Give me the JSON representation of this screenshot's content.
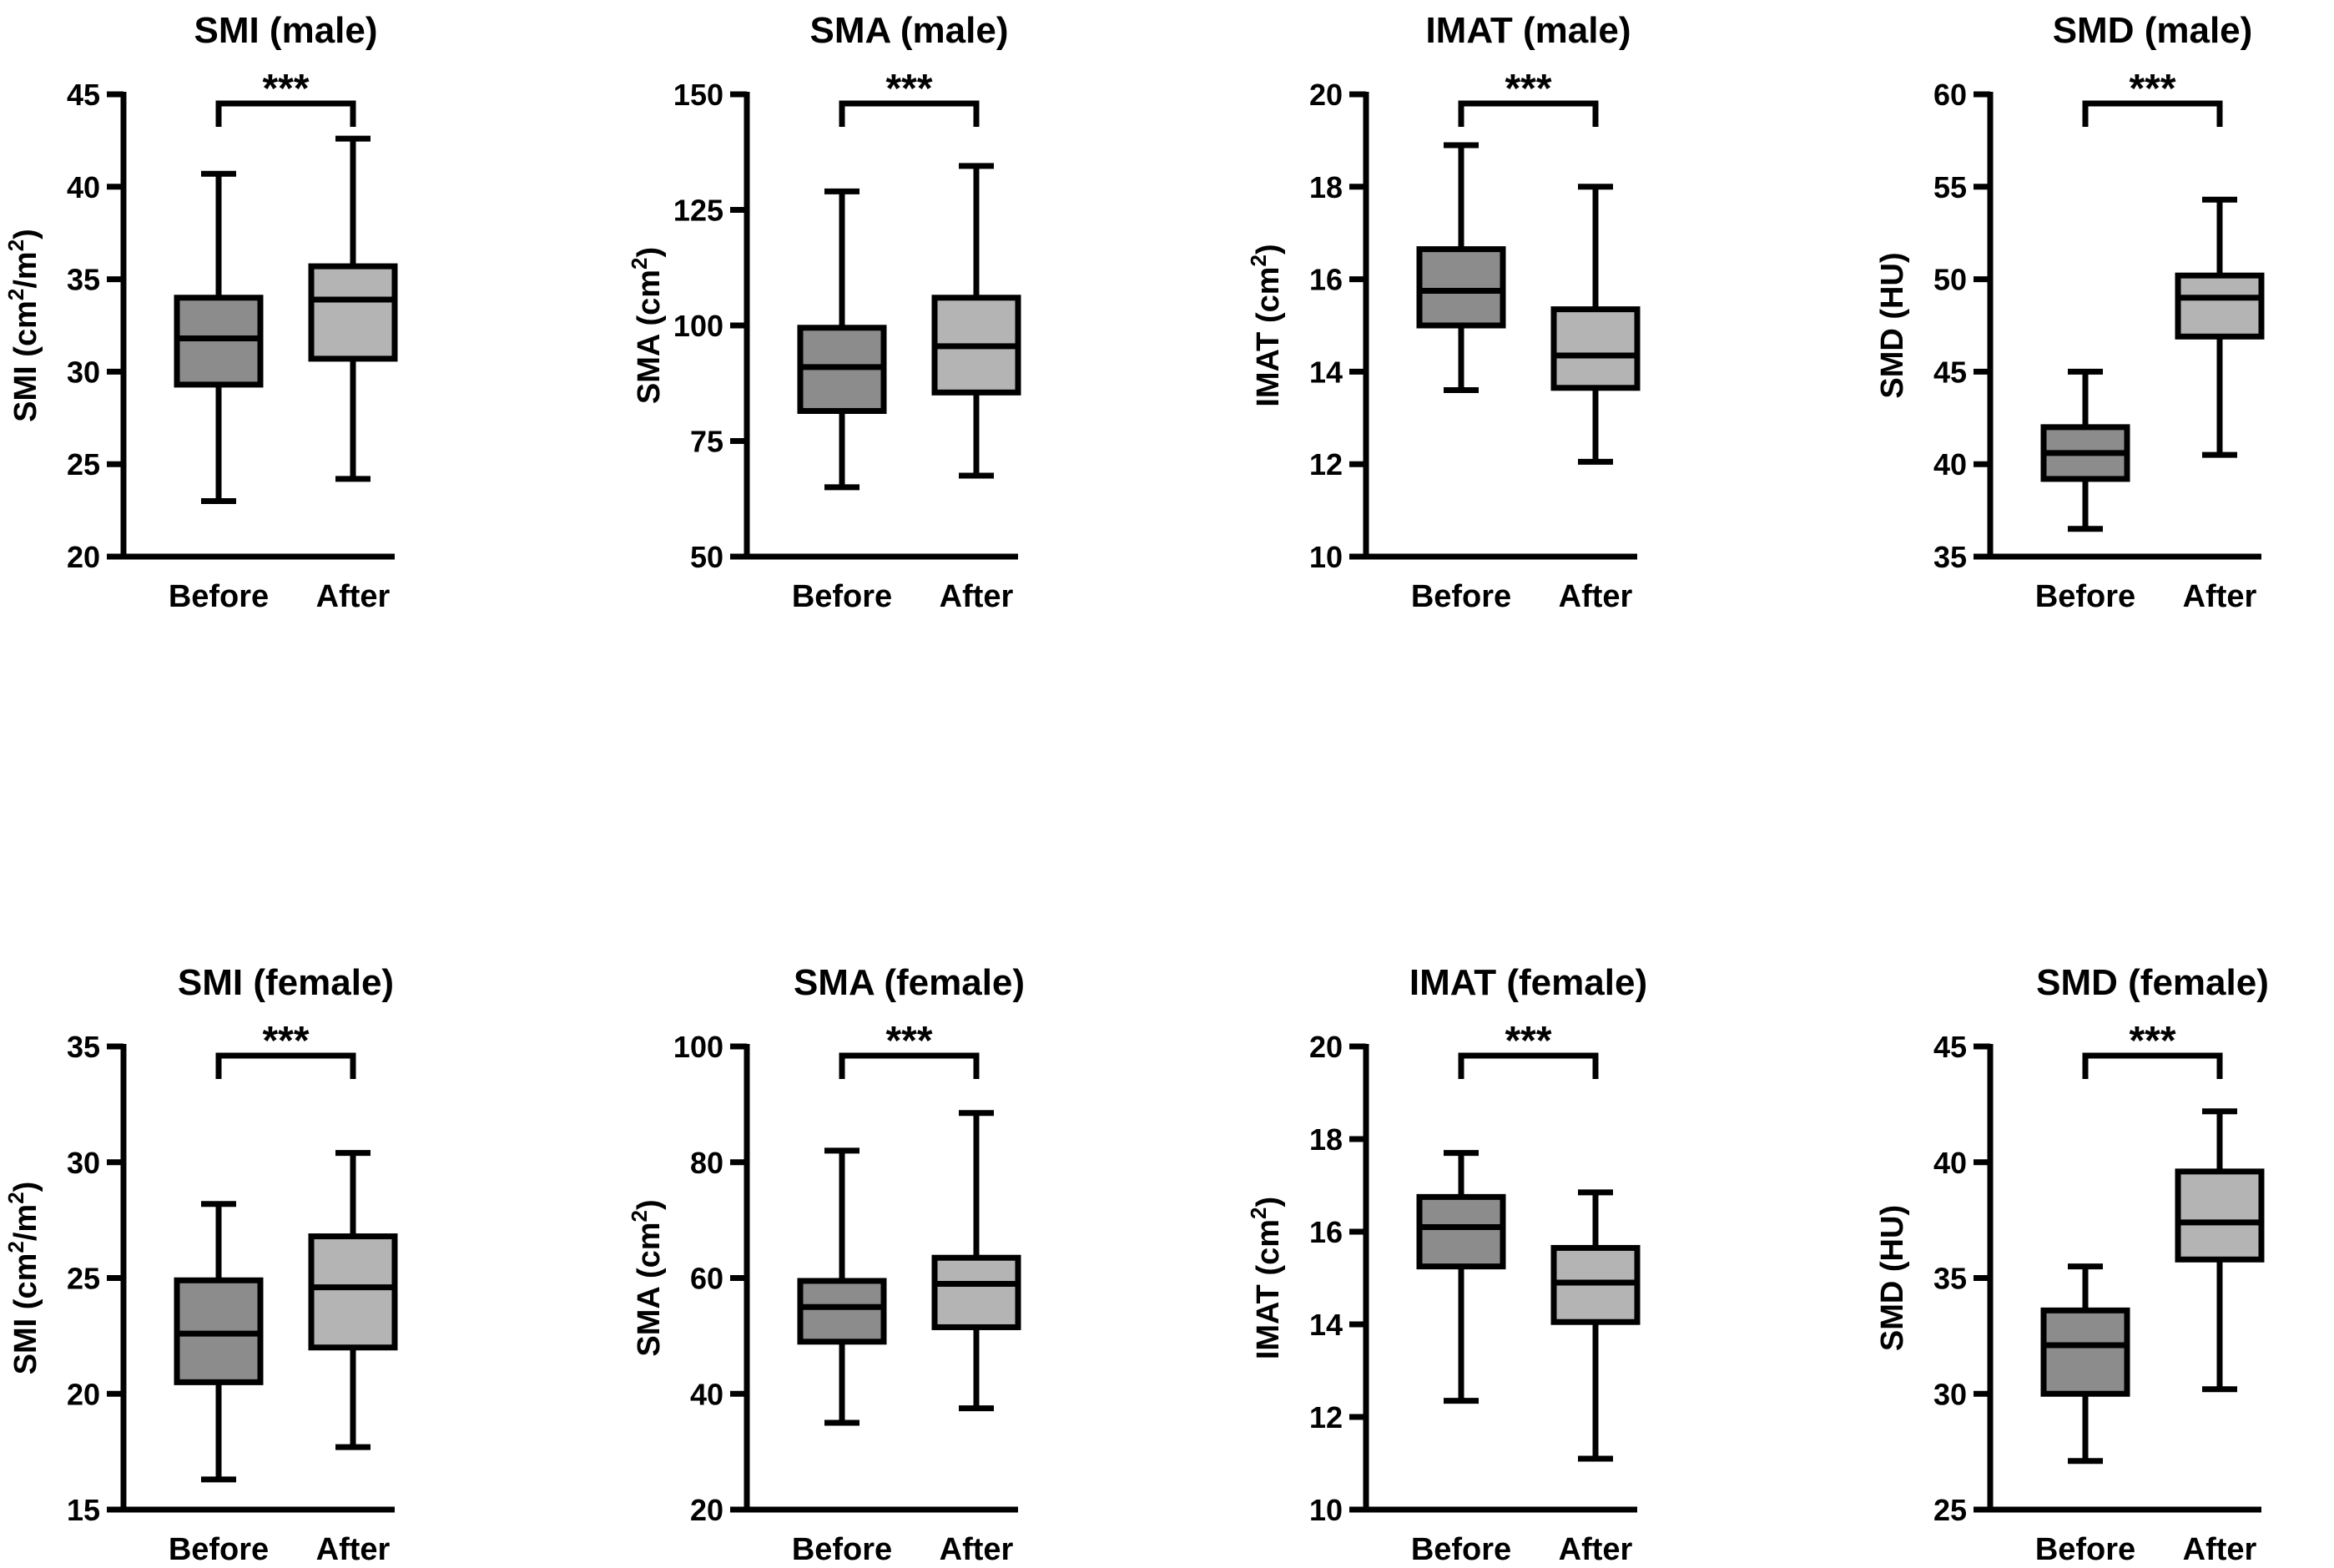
{
  "figure": {
    "colors": {
      "before_box": "#8c8c8c",
      "after_box": "#b4b4b4",
      "stroke": "#000000"
    }
  },
  "chart_data": [
    {
      "type": "box",
      "title": "SMI (male)",
      "ylabel": "SMI (cm²/m²)",
      "ylim": [
        20,
        45
      ],
      "yticks": [
        20,
        25,
        30,
        35,
        40,
        45
      ],
      "categories": [
        "Before",
        "After"
      ],
      "significance": "***",
      "boxes": [
        {
          "min": 23.0,
          "q1": 29.3,
          "median": 31.8,
          "q3": 34.0,
          "max": 40.7
        },
        {
          "min": 24.2,
          "q1": 30.7,
          "median": 33.9,
          "q3": 35.7,
          "max": 42.6
        }
      ]
    },
    {
      "type": "box",
      "title": "SMA (male)",
      "ylabel": "SMA (cm²)",
      "ylim": [
        50,
        150
      ],
      "yticks": [
        50,
        75,
        100,
        125,
        150
      ],
      "categories": [
        "Before",
        "After"
      ],
      "significance": "***",
      "boxes": [
        {
          "min": 65.0,
          "q1": 81.5,
          "median": 91.0,
          "q3": 99.5,
          "max": 129.0
        },
        {
          "min": 67.5,
          "q1": 85.5,
          "median": 95.5,
          "q3": 106.0,
          "max": 134.5
        }
      ]
    },
    {
      "type": "box",
      "title": "IMAT (male)",
      "ylabel": "IMAT (cm²)",
      "ylim": [
        10,
        20
      ],
      "yticks": [
        10,
        12,
        14,
        16,
        18,
        20
      ],
      "categories": [
        "Before",
        "After"
      ],
      "significance": "***",
      "boxes": [
        {
          "min": 13.6,
          "q1": 15.0,
          "median": 15.75,
          "q3": 16.65,
          "max": 18.9
        },
        {
          "min": 12.05,
          "q1": 13.65,
          "median": 14.35,
          "q3": 15.35,
          "max": 18.0
        }
      ]
    },
    {
      "type": "box",
      "title": "SMD (male)",
      "ylabel": "SMD (HU)",
      "ylim": [
        35,
        60
      ],
      "yticks": [
        35,
        40,
        45,
        50,
        55,
        60
      ],
      "categories": [
        "Before",
        "After"
      ],
      "significance": "***",
      "boxes": [
        {
          "min": 36.5,
          "q1": 39.2,
          "median": 40.6,
          "q3": 42.0,
          "max": 45.0
        },
        {
          "min": 40.5,
          "q1": 46.9,
          "median": 49.0,
          "q3": 50.2,
          "max": 54.3
        }
      ]
    },
    {
      "type": "box",
      "title": "SMI (female)",
      "ylabel": "SMI (cm²/m²)",
      "ylim": [
        15,
        35
      ],
      "yticks": [
        15,
        20,
        25,
        30,
        35
      ],
      "categories": [
        "Before",
        "After"
      ],
      "significance": "***",
      "boxes": [
        {
          "min": 16.3,
          "q1": 20.5,
          "median": 22.6,
          "q3": 24.9,
          "max": 28.2
        },
        {
          "min": 17.7,
          "q1": 22.0,
          "median": 24.6,
          "q3": 26.8,
          "max": 30.4
        }
      ]
    },
    {
      "type": "box",
      "title": "SMA (female)",
      "ylabel": "SMA (cm²)",
      "ylim": [
        20,
        100
      ],
      "yticks": [
        20,
        40,
        60,
        80,
        100
      ],
      "categories": [
        "Before",
        "After"
      ],
      "significance": "***",
      "boxes": [
        {
          "min": 35.0,
          "q1": 49.0,
          "median": 55.0,
          "q3": 59.5,
          "max": 82.0
        },
        {
          "min": 37.5,
          "q1": 51.5,
          "median": 59.0,
          "q3": 63.5,
          "max": 88.5
        }
      ]
    },
    {
      "type": "box",
      "title": "IMAT (female)",
      "ylabel": "IMAT (cm²)",
      "ylim": [
        10,
        20
      ],
      "yticks": [
        10,
        12,
        14,
        16,
        18,
        20
      ],
      "categories": [
        "Before",
        "After"
      ],
      "significance": "***",
      "boxes": [
        {
          "min": 12.35,
          "q1": 15.25,
          "median": 16.1,
          "q3": 16.75,
          "max": 17.7
        },
        {
          "min": 11.1,
          "q1": 14.05,
          "median": 14.9,
          "q3": 15.65,
          "max": 16.85
        }
      ]
    },
    {
      "type": "box",
      "title": "SMD (female)",
      "ylabel": "SMD (HU)",
      "ylim": [
        25,
        45
      ],
      "yticks": [
        25,
        30,
        35,
        40,
        45
      ],
      "categories": [
        "Before",
        "After"
      ],
      "significance": "***",
      "boxes": [
        {
          "min": 27.1,
          "q1": 30.0,
          "median": 32.1,
          "q3": 33.6,
          "max": 35.5
        },
        {
          "min": 30.2,
          "q1": 35.8,
          "median": 37.4,
          "q3": 39.6,
          "max": 42.2
        }
      ]
    }
  ]
}
